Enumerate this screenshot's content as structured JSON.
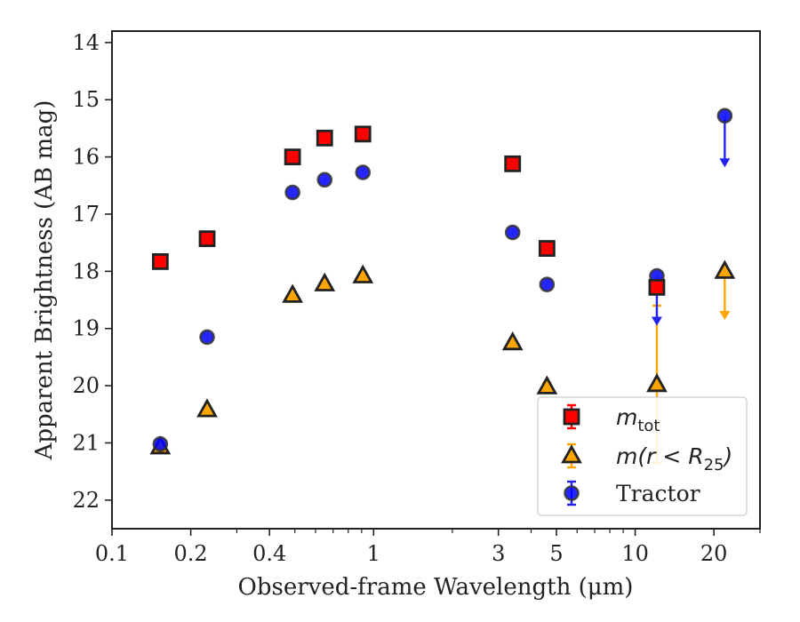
{
  "chart_data": {
    "type": "scatter",
    "xlabel": "Observed-frame Wavelength (μm)",
    "ylabel": "Apparent Brightness (AB mag)",
    "xscale": "log",
    "xlim": [
      0.1,
      30
    ],
    "ylim": [
      22.5,
      13.8
    ],
    "y_inverted": true,
    "x_ticks": [
      {
        "value": 0.1,
        "label": "0.1"
      },
      {
        "value": 0.2,
        "label": "0.2"
      },
      {
        "value": 0.4,
        "label": "0.4"
      },
      {
        "value": 1,
        "label": "1"
      },
      {
        "value": 3,
        "label": "3"
      },
      {
        "value": 5,
        "label": "5"
      },
      {
        "value": 10,
        "label": "10"
      },
      {
        "value": 20,
        "label": "20"
      }
    ],
    "y_ticks": [
      {
        "value": 14,
        "label": "14"
      },
      {
        "value": 15,
        "label": "15"
      },
      {
        "value": 16,
        "label": "16"
      },
      {
        "value": 17,
        "label": "17"
      },
      {
        "value": 18,
        "label": "18"
      },
      {
        "value": 19,
        "label": "19"
      },
      {
        "value": 20,
        "label": "20"
      },
      {
        "value": 21,
        "label": "21"
      },
      {
        "value": 22,
        "label": "22"
      }
    ],
    "grid": false,
    "legend_position": "lower-right",
    "series": [
      {
        "key": "mtot",
        "legend_base": "m",
        "legend_sub": "tot",
        "marker": "square",
        "face_color": "#ff0000",
        "edge_color": "#222222",
        "err_color": "#ff0000",
        "points": [
          {
            "x": 0.153,
            "y": 17.83
          },
          {
            "x": 0.231,
            "y": 17.43
          },
          {
            "x": 0.49,
            "y": 16.0
          },
          {
            "x": 0.65,
            "y": 15.67
          },
          {
            "x": 0.91,
            "y": 15.6
          },
          {
            "x": 3.4,
            "y": 16.12
          },
          {
            "x": 4.6,
            "y": 17.6
          },
          {
            "x": 12.1,
            "y": 18.28
          }
        ]
      },
      {
        "key": "mr25",
        "legend_base": "m(r < R",
        "legend_sub": "25",
        "legend_tail": ")",
        "marker": "triangle",
        "face_color": "#ffa500",
        "edge_color": "#222222",
        "err_color": "#ffa500",
        "points": [
          {
            "x": 0.153,
            "y": 21.07
          },
          {
            "x": 0.231,
            "y": 20.42
          },
          {
            "x": 0.49,
            "y": 18.42
          },
          {
            "x": 0.65,
            "y": 18.22
          },
          {
            "x": 0.91,
            "y": 18.08
          },
          {
            "x": 3.4,
            "y": 19.25
          },
          {
            "x": 4.6,
            "y": 20.02,
            "err": [
              19.95,
              20.1
            ]
          },
          {
            "x": 12.1,
            "y": 19.98,
            "err": [
              18.6,
              21.35
            ]
          },
          {
            "x": 22.0,
            "y": 18.0,
            "upper_limit_to": 18.85
          }
        ]
      },
      {
        "key": "tractor",
        "legend_base": "Tractor",
        "marker": "circle",
        "face_color": "#0000ff",
        "edge_color": "#333333",
        "err_color": "#2222ee",
        "points": [
          {
            "x": 0.153,
            "y": 21.02
          },
          {
            "x": 0.231,
            "y": 19.15
          },
          {
            "x": 0.49,
            "y": 16.62
          },
          {
            "x": 0.65,
            "y": 16.4
          },
          {
            "x": 0.91,
            "y": 16.27
          },
          {
            "x": 3.4,
            "y": 17.32
          },
          {
            "x": 4.6,
            "y": 18.23
          },
          {
            "x": 12.1,
            "y": 18.08,
            "upper_limit_to": 18.95
          },
          {
            "x": 22.0,
            "y": 15.28,
            "upper_limit_to": 16.18
          }
        ]
      }
    ]
  }
}
